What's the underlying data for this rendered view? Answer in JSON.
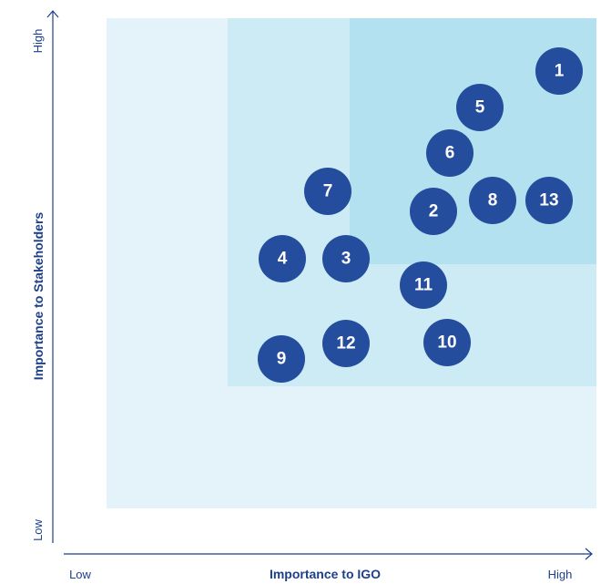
{
  "axes": {
    "x": {
      "title": "Importance to IGO",
      "low": "Low",
      "high": "High"
    },
    "y": {
      "title": "Importance to Stakeholders",
      "low": "Low",
      "high": "High"
    }
  },
  "nodes": [
    {
      "label": "1"
    },
    {
      "label": "2"
    },
    {
      "label": "3"
    },
    {
      "label": "4"
    },
    {
      "label": "5"
    },
    {
      "label": "6"
    },
    {
      "label": "7"
    },
    {
      "label": "8"
    },
    {
      "label": "9"
    },
    {
      "label": "10"
    },
    {
      "label": "11"
    },
    {
      "label": "12"
    },
    {
      "label": "13"
    }
  ]
}
